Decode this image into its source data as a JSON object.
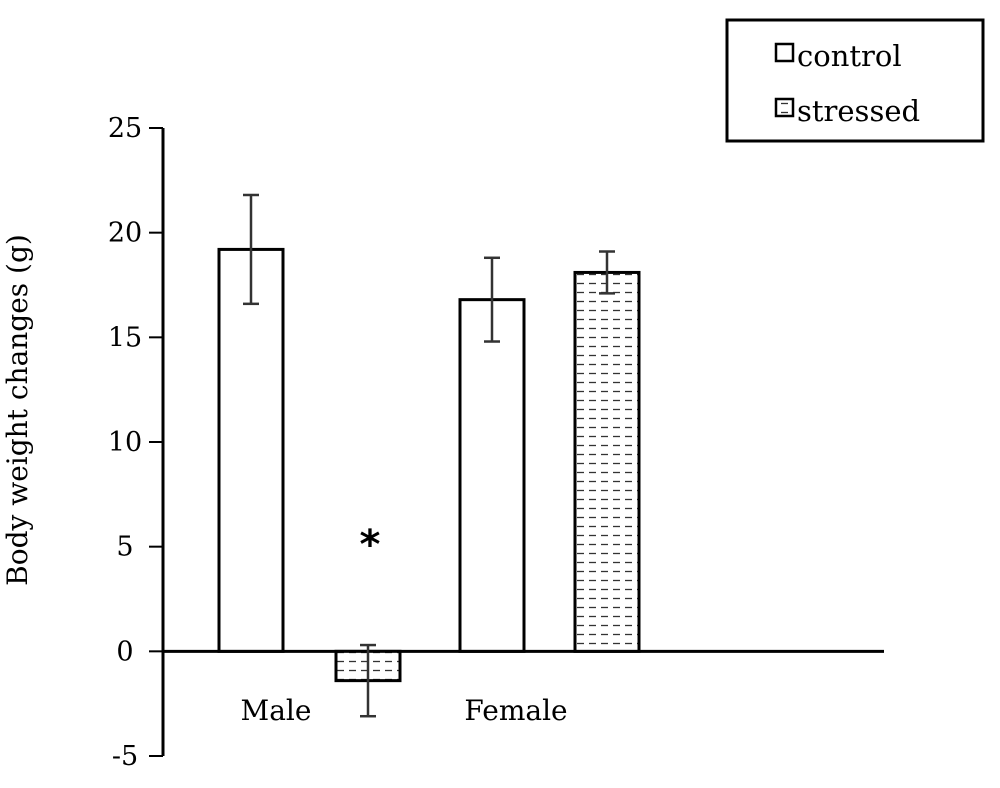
{
  "chart_data": {
    "type": "bar",
    "title": "",
    "xlabel": "",
    "ylabel": "Body weight changes (g)",
    "ylim": [
      -5,
      25
    ],
    "yticks": [
      -5,
      0,
      5,
      10,
      15,
      20,
      25
    ],
    "categories": [
      "Male",
      "Female"
    ],
    "series": [
      {
        "name": "control",
        "values": [
          19.2,
          16.8
        ],
        "errors": [
          2.6,
          2.0
        ],
        "fill": "plain"
      },
      {
        "name": "stressed",
        "values": [
          -1.4,
          18.1
        ],
        "errors": [
          1.7,
          1.0
        ],
        "fill": "dashed-pattern"
      }
    ],
    "annotations": [
      {
        "text": "*",
        "category": "Male",
        "series": "stressed",
        "y": 5.5
      }
    ],
    "legend": {
      "position": "top-right",
      "entries": [
        "control",
        "stressed"
      ]
    },
    "grid": false
  }
}
